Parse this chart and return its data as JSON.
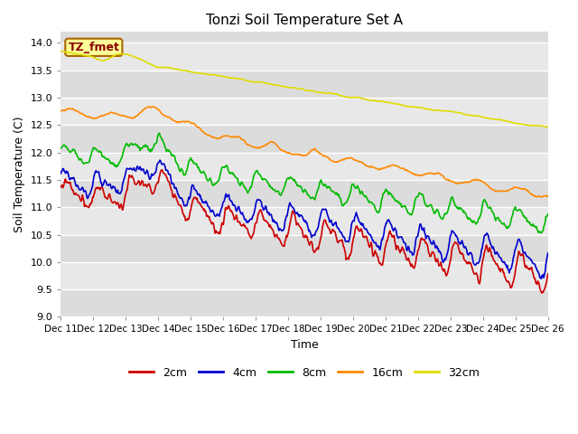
{
  "title": "Tonzi Soil Temperature Set A",
  "xlabel": "Time",
  "ylabel": "Soil Temperature (C)",
  "ylim": [
    9.0,
    14.2
  ],
  "background_color": "#dcdcdc",
  "fig_background": "#ffffff",
  "grid_color": "#ffffff",
  "band_colors": [
    "#dcdcdc",
    "#e8e8e8"
  ],
  "annotation_label": "TZ_fmet",
  "annotation_bg": "#ffff99",
  "annotation_border": "#aa6600",
  "series_colors": {
    "2cm": "#cc0000",
    "4cm": "#0000cc",
    "8cm": "#00bb00",
    "16cm": "#ff8800",
    "32cm": "#dddd00"
  },
  "lw": 1.2,
  "xtick_labels": [
    "Dec 11",
    "Dec 12",
    "Dec 13",
    "Dec 14",
    "Dec 15",
    "Dec 16",
    "Dec 17",
    "Dec 18",
    "Dec 19",
    "Dec 20",
    "Dec 21",
    "Dec 22",
    "Dec 23",
    "Dec 24",
    "Dec 25",
    "Dec 26"
  ],
  "legend_entries": [
    "2cm",
    "4cm",
    "8cm",
    "16cm",
    "32cm"
  ],
  "legend_colors": [
    "#cc0000",
    "#0000cc",
    "#00bb00",
    "#ff8800",
    "#dddd00"
  ]
}
